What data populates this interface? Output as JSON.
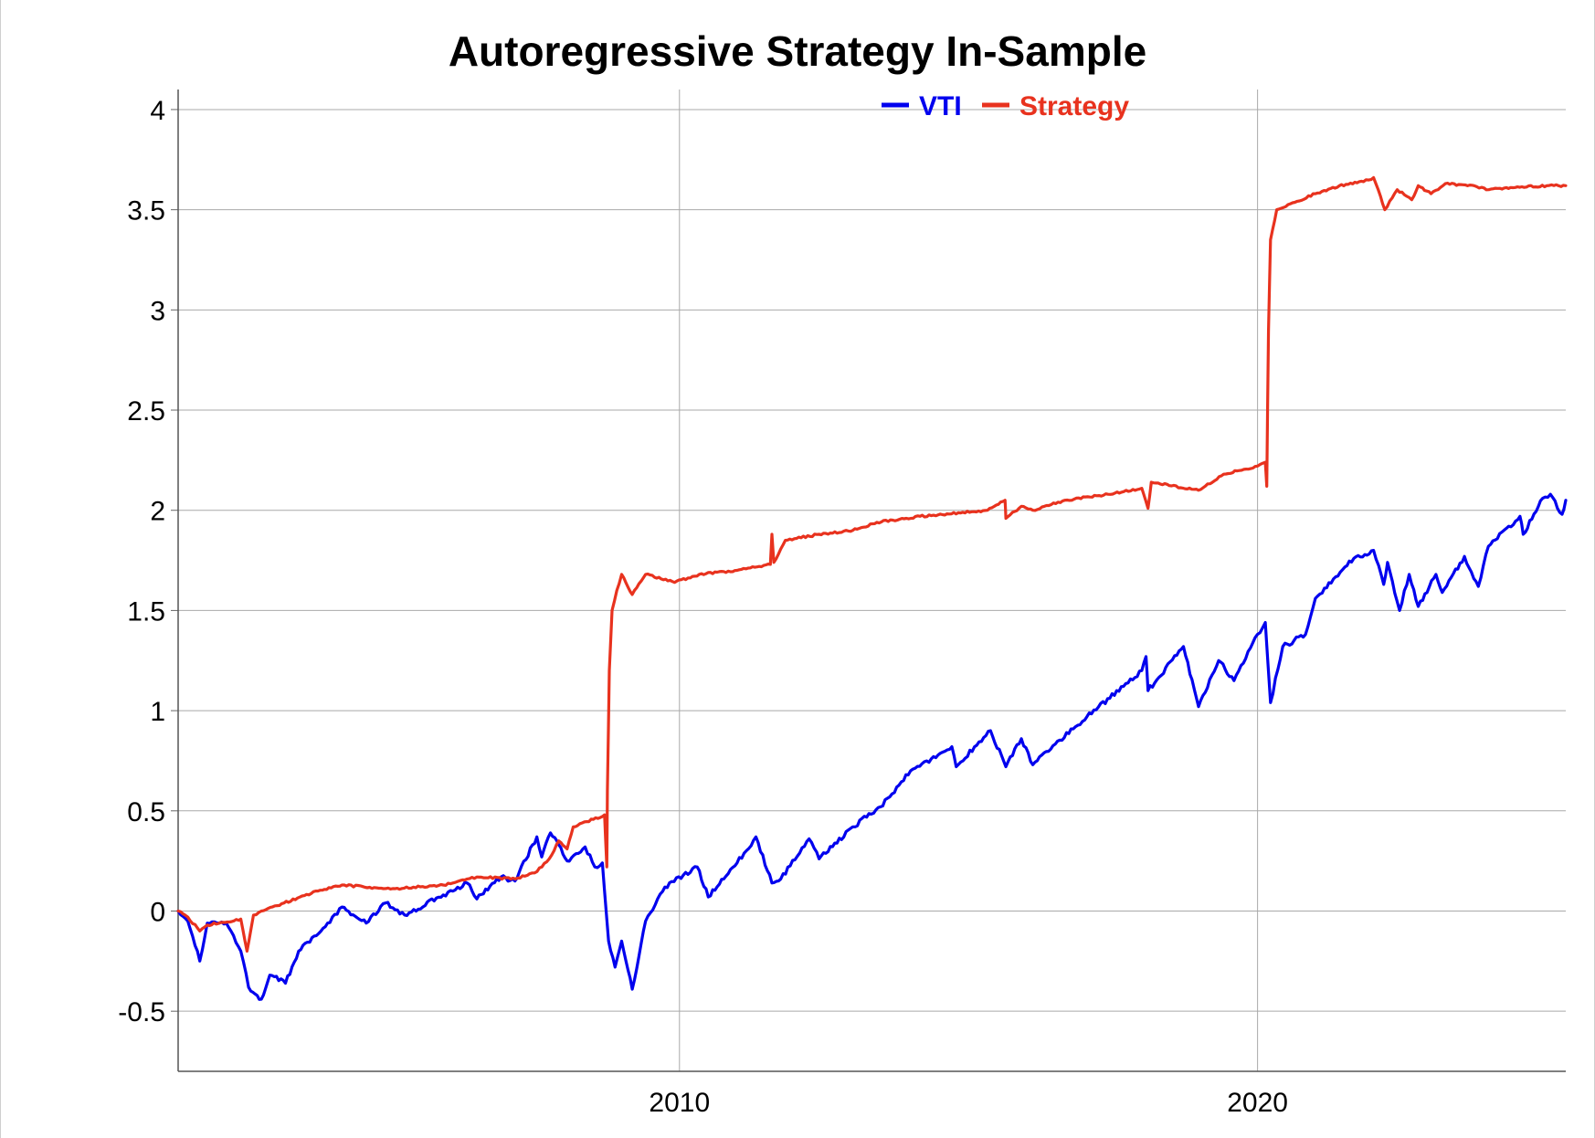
{
  "chart_data": {
    "type": "line",
    "title": "Autoregressive Strategy In-Sample",
    "xlabel": "",
    "ylabel": "",
    "xlim": [
      "2001-05-01",
      "2025-05-01"
    ],
    "ylim": [
      -0.8,
      4.1
    ],
    "x_ticks": [
      {
        "value": "2010-01-01",
        "label": "2010"
      },
      {
        "value": "2020-01-01",
        "label": "2020"
      }
    ],
    "y_ticks": [
      {
        "value": -0.5,
        "label": "-0.5"
      },
      {
        "value": 0,
        "label": "0"
      },
      {
        "value": 0.5,
        "label": "0.5"
      },
      {
        "value": 1,
        "label": "1"
      },
      {
        "value": 1.5,
        "label": "1.5"
      },
      {
        "value": 2,
        "label": "2"
      },
      {
        "value": 2.5,
        "label": "2.5"
      },
      {
        "value": 3,
        "label": "3"
      },
      {
        "value": 3.5,
        "label": "3.5"
      },
      {
        "value": 4,
        "label": "4"
      }
    ],
    "grid": true,
    "legend_position": "top-center",
    "series": [
      {
        "name": "VTI",
        "color": "#0000ee",
        "points": [
          [
            "2001-05-01",
            0.0
          ],
          [
            "2001-07-01",
            -0.05
          ],
          [
            "2001-09-15",
            -0.25
          ],
          [
            "2001-11-01",
            -0.06
          ],
          [
            "2002-03-01",
            -0.06
          ],
          [
            "2002-06-01",
            -0.2
          ],
          [
            "2002-07-20",
            -0.38
          ],
          [
            "2002-10-09",
            -0.44
          ],
          [
            "2002-12-01",
            -0.32
          ],
          [
            "2003-03-10",
            -0.36
          ],
          [
            "2003-06-01",
            -0.2
          ],
          [
            "2003-12-01",
            -0.06
          ],
          [
            "2004-03-01",
            0.02
          ],
          [
            "2004-08-01",
            -0.06
          ],
          [
            "2004-12-01",
            0.04
          ],
          [
            "2005-04-01",
            -0.02
          ],
          [
            "2005-12-01",
            0.08
          ],
          [
            "2006-05-01",
            0.14
          ],
          [
            "2006-07-01",
            0.06
          ],
          [
            "2006-12-01",
            0.17
          ],
          [
            "2007-02-27",
            0.15
          ],
          [
            "2007-07-15",
            0.37
          ],
          [
            "2007-08-15",
            0.27
          ],
          [
            "2007-10-09",
            0.39
          ],
          [
            "2007-12-01",
            0.33
          ],
          [
            "2008-01-22",
            0.25
          ],
          [
            "2008-05-15",
            0.32
          ],
          [
            "2008-07-15",
            0.22
          ],
          [
            "2008-09-01",
            0.24
          ],
          [
            "2008-10-10",
            -0.15
          ],
          [
            "2008-11-20",
            -0.28
          ],
          [
            "2009-01-01",
            -0.15
          ],
          [
            "2009-03-09",
            -0.39
          ],
          [
            "2009-06-01",
            -0.05
          ],
          [
            "2009-10-01",
            0.12
          ],
          [
            "2010-04-23",
            0.22
          ],
          [
            "2010-07-02",
            0.07
          ],
          [
            "2010-12-31",
            0.24
          ],
          [
            "2011-04-29",
            0.37
          ],
          [
            "2011-08-08",
            0.14
          ],
          [
            "2011-10-03",
            0.16
          ],
          [
            "2012-03-30",
            0.36
          ],
          [
            "2012-06-01",
            0.26
          ],
          [
            "2012-12-31",
            0.42
          ],
          [
            "2013-06-24",
            0.52
          ],
          [
            "2013-12-31",
            0.7
          ],
          [
            "2014-09-18",
            0.82
          ],
          [
            "2014-10-15",
            0.72
          ],
          [
            "2015-05-20",
            0.9
          ],
          [
            "2015-08-25",
            0.72
          ],
          [
            "2015-12-01",
            0.86
          ],
          [
            "2016-02-11",
            0.73
          ],
          [
            "2016-11-07",
            0.92
          ],
          [
            "2017-12-31",
            1.2
          ],
          [
            "2018-01-26",
            1.27
          ],
          [
            "2018-02-08",
            1.1
          ],
          [
            "2018-09-20",
            1.32
          ],
          [
            "2018-12-24",
            1.02
          ],
          [
            "2019-04-30",
            1.25
          ],
          [
            "2019-08-05",
            1.15
          ],
          [
            "2019-12-31",
            1.38
          ],
          [
            "2020-02-19",
            1.44
          ],
          [
            "2020-03-23",
            1.04
          ],
          [
            "2020-06-08",
            1.32
          ],
          [
            "2020-10-30",
            1.38
          ],
          [
            "2020-12-31",
            1.56
          ],
          [
            "2021-08-31",
            1.76
          ],
          [
            "2022-01-03",
            1.8
          ],
          [
            "2022-03-08",
            1.63
          ],
          [
            "2022-04-01",
            1.74
          ],
          [
            "2022-06-16",
            1.5
          ],
          [
            "2022-08-16",
            1.68
          ],
          [
            "2022-10-12",
            1.52
          ],
          [
            "2023-02-01",
            1.68
          ],
          [
            "2023-03-13",
            1.59
          ],
          [
            "2023-07-31",
            1.77
          ],
          [
            "2023-10-27",
            1.62
          ],
          [
            "2023-12-29",
            1.82
          ],
          [
            "2024-07-16",
            1.97
          ],
          [
            "2024-08-05",
            1.88
          ],
          [
            "2024-12-06",
            2.06
          ],
          [
            "2025-01-24",
            2.08
          ],
          [
            "2025-04-08",
            1.98
          ],
          [
            "2025-05-01",
            2.05
          ]
        ]
      },
      {
        "name": "Strategy",
        "color": "#e8321e",
        "points": [
          [
            "2001-05-01",
            0.0
          ],
          [
            "2001-07-01",
            -0.03
          ],
          [
            "2001-09-15",
            -0.1
          ],
          [
            "2001-11-01",
            -0.07
          ],
          [
            "2002-06-01",
            -0.04
          ],
          [
            "2002-07-10",
            -0.2
          ],
          [
            "2002-08-20",
            -0.02
          ],
          [
            "2002-10-09",
            0.0
          ],
          [
            "2003-03-01",
            0.04
          ],
          [
            "2003-10-01",
            0.1
          ],
          [
            "2004-03-01",
            0.13
          ],
          [
            "2005-01-01",
            0.11
          ],
          [
            "2005-12-01",
            0.13
          ],
          [
            "2006-05-01",
            0.16
          ],
          [
            "2006-07-01",
            0.17
          ],
          [
            "2007-03-01",
            0.16
          ],
          [
            "2007-07-01",
            0.19
          ],
          [
            "2007-10-01",
            0.26
          ],
          [
            "2007-12-01",
            0.35
          ],
          [
            "2008-01-22",
            0.31
          ],
          [
            "2008-03-01",
            0.42
          ],
          [
            "2008-09-15",
            0.48
          ],
          [
            "2008-09-29",
            0.22
          ],
          [
            "2008-10-03",
            0.6
          ],
          [
            "2008-10-15",
            1.2
          ],
          [
            "2008-11-01",
            1.5
          ],
          [
            "2008-12-01",
            1.6
          ],
          [
            "2009-01-01",
            1.68
          ],
          [
            "2009-03-09",
            1.58
          ],
          [
            "2009-06-01",
            1.68
          ],
          [
            "2009-12-01",
            1.64
          ],
          [
            "2010-05-06",
            1.68
          ],
          [
            "2010-12-31",
            1.7
          ],
          [
            "2011-07-29",
            1.73
          ],
          [
            "2011-08-08",
            1.88
          ],
          [
            "2011-08-20",
            1.74
          ],
          [
            "2011-11-01",
            1.85
          ],
          [
            "2012-06-01",
            1.88
          ],
          [
            "2012-12-31",
            1.9
          ],
          [
            "2013-06-01",
            1.94
          ],
          [
            "2014-03-01",
            1.97
          ],
          [
            "2015-05-01",
            2.0
          ],
          [
            "2015-08-20",
            2.05
          ],
          [
            "2015-08-25",
            1.96
          ],
          [
            "2015-12-01",
            2.02
          ],
          [
            "2016-02-11",
            2.0
          ],
          [
            "2016-09-01",
            2.05
          ],
          [
            "2017-06-01",
            2.08
          ],
          [
            "2017-12-31",
            2.11
          ],
          [
            "2018-02-08",
            2.01
          ],
          [
            "2018-03-01",
            2.14
          ],
          [
            "2018-12-24",
            2.1
          ],
          [
            "2019-06-01",
            2.18
          ],
          [
            "2019-12-31",
            2.22
          ],
          [
            "2020-02-19",
            2.24
          ],
          [
            "2020-02-28",
            2.12
          ],
          [
            "2020-03-10",
            2.9
          ],
          [
            "2020-03-23",
            3.35
          ],
          [
            "2020-05-01",
            3.5
          ],
          [
            "2020-12-31",
            3.58
          ],
          [
            "2021-06-01",
            3.62
          ],
          [
            "2021-11-01",
            3.64
          ],
          [
            "2022-01-03",
            3.66
          ],
          [
            "2022-02-01",
            3.6
          ],
          [
            "2022-03-15",
            3.5
          ],
          [
            "2022-06-01",
            3.6
          ],
          [
            "2022-09-01",
            3.55
          ],
          [
            "2022-10-12",
            3.62
          ],
          [
            "2023-01-01",
            3.58
          ],
          [
            "2023-04-01",
            3.63
          ],
          [
            "2023-10-01",
            3.62
          ],
          [
            "2024-01-01",
            3.6
          ],
          [
            "2024-06-01",
            3.61
          ],
          [
            "2025-01-01",
            3.62
          ],
          [
            "2025-05-01",
            3.62
          ]
        ]
      }
    ]
  }
}
